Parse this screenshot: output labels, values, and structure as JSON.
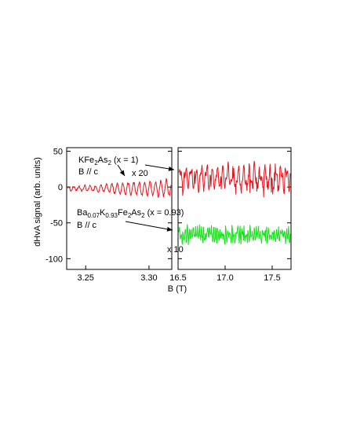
{
  "chart_data": {
    "type": "line",
    "xlabel": "B (T)",
    "ylabel": "dHvA signal (arb. units)",
    "ylim": [
      -115,
      55
    ],
    "yticks": [
      50,
      0,
      -50,
      -100
    ],
    "panels": [
      {
        "name": "left",
        "xlim": [
          3.235,
          3.318
        ],
        "xticks": [
          "3.25",
          "3.30"
        ],
        "xtick_values": [
          3.25,
          3.3
        ]
      },
      {
        "name": "right",
        "xlim": [
          16.5,
          17.7
        ],
        "xticks": [
          "16.5",
          "17.0",
          "17.5"
        ],
        "xtick_values": [
          16.5,
          17.0,
          17.5
        ]
      }
    ],
    "series": [
      {
        "panel": "left",
        "color": "#e8141c",
        "offset": -2,
        "amplitude_envelope": [
          [
            3.235,
            3
          ],
          [
            3.26,
            5
          ],
          [
            3.285,
            11
          ],
          [
            3.318,
            14
          ]
        ]
      },
      {
        "panel": "right",
        "color": "#e8141c",
        "offset": 14,
        "amplitude": 22
      },
      {
        "panel": "right",
        "color": "#16e01a",
        "offset": -66,
        "amplitude": 12
      }
    ],
    "annotations": {
      "k_formula": {
        "base": "KFe",
        "s1": "2",
        "mid": "As",
        "s2": "2",
        "tail": " (x = 1)"
      },
      "k_field": "B // c",
      "k_mult": "x 20",
      "ba_formula": {
        "a": "Ba",
        "as": "0.07",
        "b": "K",
        "bs": "0.93",
        "c": "Fe",
        "cs": "2",
        "d": "As",
        "ds": "2",
        "tail": " (x = 0.93)"
      },
      "ba_field": "B // c",
      "ba_mult": "x 10"
    },
    "colors": {
      "k_series": "#e8141c",
      "ba_series": "#16e01a",
      "axes": "#000000"
    }
  }
}
